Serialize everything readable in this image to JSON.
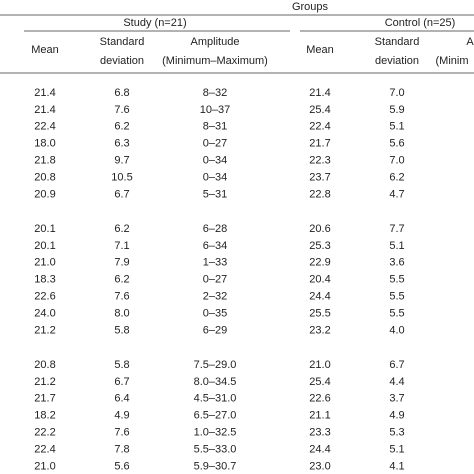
{
  "header": {
    "title": "Groups",
    "groups": [
      "Study (n=21)",
      "Control (n=25)"
    ],
    "columns": [
      [
        "Mean"
      ],
      [
        "Standard",
        "deviation"
      ],
      [
        "Amplitude",
        "(Minimum–Maximum)"
      ],
      [
        "Mean"
      ],
      [
        "Standard",
        "deviation"
      ],
      [
        "A",
        "(Minim"
      ]
    ]
  },
  "table": {
    "sections": [
      [
        [
          "21.4",
          "6.8",
          "8–32",
          "21.4",
          "7.0"
        ],
        [
          "21.4",
          "7.6",
          "10–37",
          "25.4",
          "5.9"
        ],
        [
          "22.4",
          "6.2",
          "8–31",
          "22.4",
          "5.1"
        ],
        [
          "18.0",
          "6.3",
          "0–27",
          "21.7",
          "5.6"
        ],
        [
          "21.8",
          "9.7",
          "0–34",
          "22.3",
          "7.0"
        ],
        [
          "20.8",
          "10.5",
          "0–34",
          "23.7",
          "6.2"
        ],
        [
          "20.9",
          "6.7",
          "5–31",
          "22.8",
          "4.7"
        ]
      ],
      [
        [
          "20.1",
          "6.2",
          "6–28",
          "20.6",
          "7.7"
        ],
        [
          "20.1",
          "7.1",
          "6–34",
          "25.3",
          "5.1"
        ],
        [
          "21.0",
          "7.9",
          "1–33",
          "22.9",
          "3.6"
        ],
        [
          "18.3",
          "6.2",
          "0–27",
          "20.4",
          "5.5"
        ],
        [
          "22.6",
          "7.6",
          "2–32",
          "24.4",
          "5.5"
        ],
        [
          "24.0",
          "8.0",
          "0–35",
          "25.5",
          "5.5"
        ],
        [
          "21.2",
          "5.8",
          "6–29",
          "23.2",
          "4.0"
        ]
      ],
      [
        [
          "20.8",
          "5.8",
          "7.5–29.0",
          "21.0",
          "6.7"
        ],
        [
          "21.2",
          "6.7",
          "8.0–34.5",
          "25.4",
          "4.4"
        ],
        [
          "21.7",
          "6.4",
          "4.5–31.0",
          "22.6",
          "3.7"
        ],
        [
          "18.2",
          "4.9",
          "6.5–27.0",
          "21.1",
          "4.9"
        ],
        [
          "22.2",
          "7.6",
          "1.0–32.5",
          "23.3",
          "5.3"
        ],
        [
          "22.4",
          "7.8",
          "5.5–33.0",
          "24.4",
          "5.1"
        ],
        [
          "21.0",
          "5.6",
          "5.9–30.7",
          "23.0",
          "4.1"
        ]
      ]
    ]
  }
}
